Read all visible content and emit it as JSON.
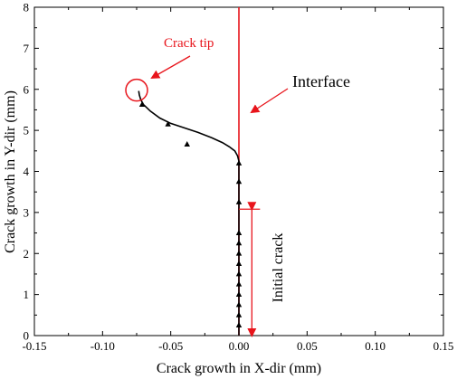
{
  "chart_data": {
    "type": "line",
    "title": "",
    "xlabel": "Crack growth in X-dir (mm)",
    "ylabel": "Crack growth in Y-dir (mm)",
    "xlim": [
      -0.15,
      0.15
    ],
    "ylim": [
      0,
      8
    ],
    "xticks": [
      -0.15,
      -0.1,
      -0.05,
      0.0,
      0.05,
      0.1,
      0.15
    ],
    "xtick_labels": [
      "-0.15",
      "-0.10",
      "-0.05",
      "0.00",
      "0.05",
      "0.10",
      "0.15"
    ],
    "yticks": [
      0,
      1,
      2,
      3,
      4,
      5,
      6,
      7,
      8
    ],
    "ytick_labels": [
      "0",
      "1",
      "2",
      "3",
      "4",
      "5",
      "6",
      "7",
      "8"
    ],
    "grid": false,
    "series": [
      {
        "color": "#000000",
        "marker": "triangle",
        "x": [
          0.0,
          0.0,
          0.0,
          0.0,
          0.0,
          0.0,
          0.0,
          0.0,
          0.0,
          0.0,
          0.0,
          0.0,
          0.0,
          0.0,
          0.0,
          0.0,
          0.0,
          0.0,
          -0.001,
          -0.003,
          -0.007,
          -0.012,
          -0.02,
          -0.03,
          -0.04,
          -0.05,
          -0.058,
          -0.065,
          -0.07,
          -0.072,
          -0.073,
          -0.0735
        ],
        "y": [
          0.0,
          0.25,
          0.5,
          0.75,
          1.0,
          1.25,
          1.5,
          1.75,
          2.0,
          2.25,
          2.5,
          2.75,
          3.0,
          3.25,
          3.5,
          3.75,
          4.0,
          4.25,
          4.38,
          4.5,
          4.6,
          4.7,
          4.82,
          4.95,
          5.06,
          5.17,
          5.3,
          5.47,
          5.63,
          5.75,
          5.86,
          5.96
        ]
      }
    ],
    "markers": [
      {
        "x": 0.0,
        "y": 0.25
      },
      {
        "x": 0.0,
        "y": 0.5
      },
      {
        "x": 0.0,
        "y": 0.75
      },
      {
        "x": 0.0,
        "y": 1.0
      },
      {
        "x": 0.0,
        "y": 1.25
      },
      {
        "x": 0.0,
        "y": 1.5
      },
      {
        "x": 0.0,
        "y": 1.75
      },
      {
        "x": 0.0,
        "y": 2.0
      },
      {
        "x": 0.0,
        "y": 2.25
      },
      {
        "x": 0.0,
        "y": 2.5
      },
      {
        "x": 0.0,
        "y": 3.25
      },
      {
        "x": 0.0,
        "y": 3.75
      },
      {
        "x": 0.0,
        "y": 4.2
      },
      {
        "x": -0.038,
        "y": 4.66
      },
      {
        "x": -0.052,
        "y": 5.15
      },
      {
        "x": -0.071,
        "y": 5.63
      }
    ],
    "interface_line": {
      "x": 0.0,
      "color": "#e8141b"
    },
    "annotations": {
      "crack_tip": {
        "text": "Crack tip",
        "circle_center": [
          -0.075,
          5.98
        ],
        "color": "#e8141b"
      },
      "interface": {
        "text": "Interface",
        "arrow_target": [
          0.007,
          5.4
        ]
      },
      "initial_crack": {
        "text": "Initial crack",
        "span_y": [
          0.0,
          3.08
        ],
        "x": 0.0095
      }
    }
  }
}
